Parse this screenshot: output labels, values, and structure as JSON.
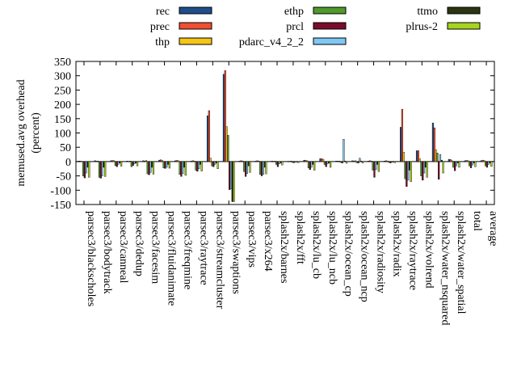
{
  "chart_data": {
    "type": "bar",
    "ylabel": "memused.avg overhead\n(percent)",
    "ylim": [
      -150,
      350
    ],
    "yticks": [
      -150,
      -100,
      -50,
      0,
      50,
      100,
      150,
      200,
      250,
      300,
      350
    ],
    "legend_position": "top",
    "categories": [
      "parsec3/blackscholes",
      "parsec3/bodytrack",
      "parsec3/canneal",
      "parsec3/dedup",
      "parsec3/facesim",
      "parsec3/fluidanimate",
      "parsec3/freqmine",
      "parsec3/raytrace",
      "parsec3/streamcluster",
      "parsec3/swaptions",
      "parsec3/vips",
      "parsec3/x264",
      "splash2x/barnes",
      "splash2x/fft",
      "splash2x/lu_cb",
      "splash2x/lu_ncb",
      "splash2x/ocean_cp",
      "splash2x/ocean_ncp",
      "splash2x/radiosity",
      "splash2x/radix",
      "splash2x/raytrace",
      "splash2x/volrend",
      "splash2x/water_nsquared",
      "splash2x/water_spatial",
      "total",
      "average"
    ],
    "series": [
      {
        "name": "rec",
        "color": "#1f4e8c",
        "values": [
          2,
          3,
          3,
          2,
          3,
          5,
          3,
          2,
          160,
          305,
          2,
          2,
          2,
          1,
          5,
          10,
          2,
          3,
          2,
          2,
          120,
          38,
          135,
          8,
          3,
          3
        ]
      },
      {
        "name": "prec",
        "color": "#f05030",
        "values": [
          2,
          2,
          4,
          1,
          2,
          6,
          4,
          3,
          178,
          318,
          3,
          3,
          1,
          1,
          4,
          10,
          2,
          2,
          3,
          3,
          183,
          38,
          118,
          7,
          4,
          5
        ]
      },
      {
        "name": "thp",
        "color": "#f5c518",
        "values": [
          1,
          2,
          3,
          2,
          4,
          4,
          3,
          2,
          12,
          122,
          2,
          2,
          2,
          2,
          3,
          8,
          2,
          3,
          2,
          2,
          33,
          10,
          42,
          3,
          3,
          4
        ]
      },
      {
        "name": "ethp",
        "color": "#4f9a2b",
        "values": [
          -50,
          -55,
          -14,
          -18,
          -43,
          -22,
          -45,
          -30,
          -15,
          92,
          -35,
          -45,
          -10,
          -3,
          -22,
          -10,
          -3,
          -4,
          -30,
          -3,
          -60,
          -50,
          30,
          -20,
          -15,
          -15
        ]
      },
      {
        "name": "prcl",
        "color": "#7a0d2a",
        "values": [
          -57,
          -58,
          -18,
          -14,
          -46,
          -24,
          -52,
          -34,
          -18,
          -98,
          -52,
          -50,
          -18,
          -4,
          -28,
          -18,
          -5,
          -5,
          -55,
          -5,
          -87,
          -65,
          -62,
          -32,
          -22,
          -20
        ]
      },
      {
        "name": "pdarc_v4_2_2",
        "color": "#7ec8f4",
        "values": [
          -40,
          -50,
          -10,
          -8,
          -38,
          -20,
          -42,
          -25,
          -10,
          -95,
          -42,
          -45,
          -8,
          -2,
          -20,
          -8,
          78,
          12,
          -28,
          -2,
          -65,
          -40,
          25,
          -15,
          -12,
          -10
        ]
      },
      {
        "name": "ttmo",
        "color": "#2b3510",
        "values": [
          -20,
          -20,
          -5,
          -5,
          -20,
          -10,
          -20,
          -10,
          -5,
          -140,
          -15,
          -20,
          -5,
          -1,
          -10,
          -5,
          2,
          2,
          -10,
          -1,
          -30,
          -20,
          5,
          -5,
          -5,
          -5
        ]
      },
      {
        "name": "plrus-2",
        "color": "#a7d41e",
        "values": [
          -55,
          -52,
          -16,
          -15,
          -44,
          -23,
          -48,
          -33,
          -25,
          -140,
          -38,
          -43,
          -12,
          -4,
          -30,
          -20,
          -6,
          -5,
          -35,
          -4,
          -70,
          -55,
          -40,
          -20,
          -18,
          -17
        ]
      }
    ]
  }
}
